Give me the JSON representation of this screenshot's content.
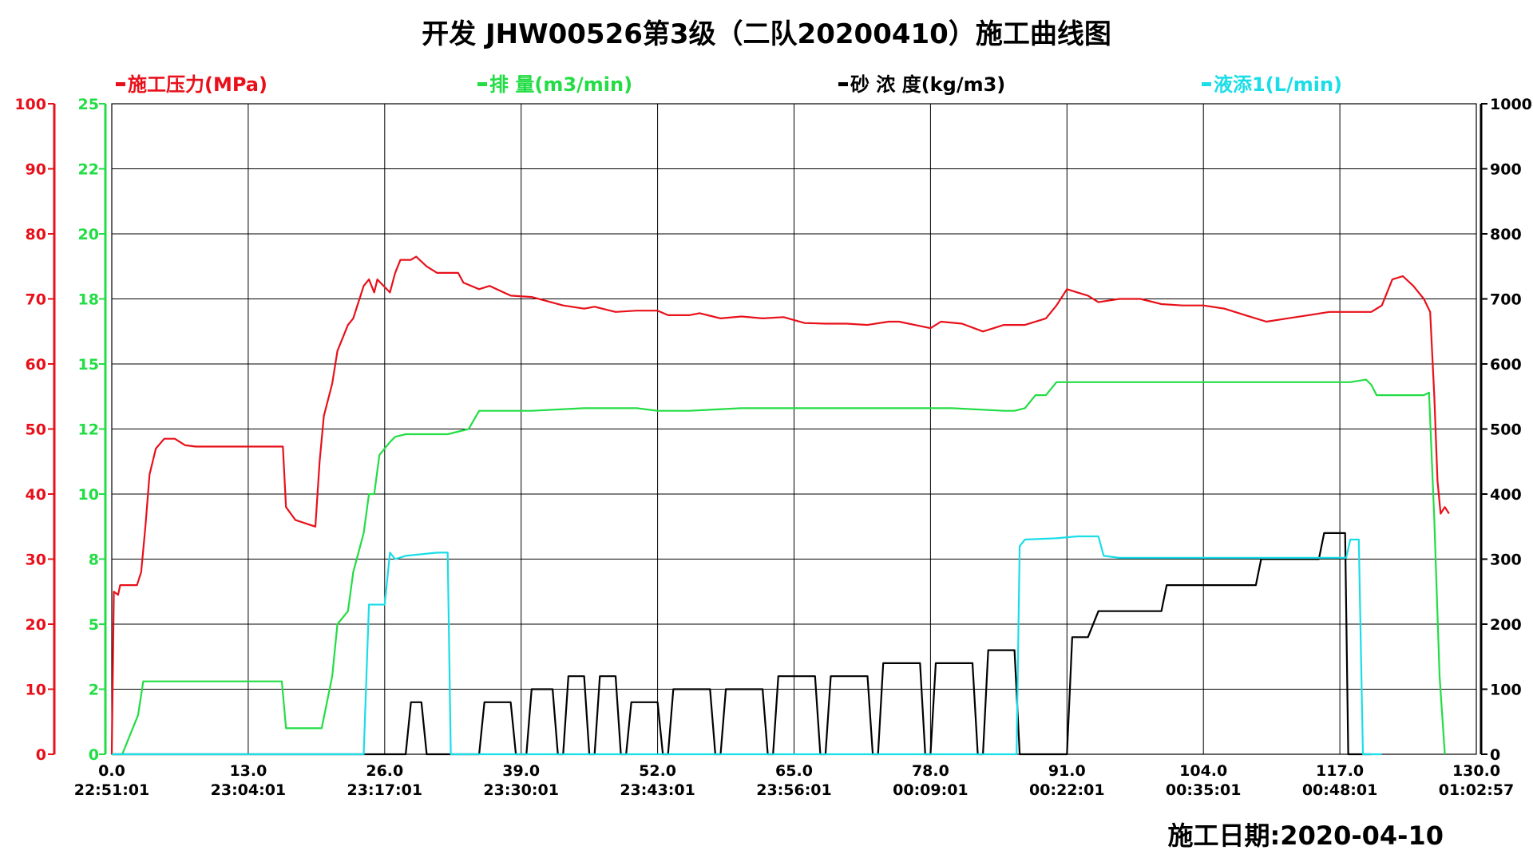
{
  "title": "开发 JHW00526第3级（二队20200410）施工曲线图",
  "construction_date": "施工日期:2020-04-10",
  "chart_data": {
    "type": "line",
    "grid": true,
    "legend_position": "top",
    "xlim": [
      0,
      130
    ],
    "x_ticks": [
      0,
      13,
      26,
      39,
      52,
      65,
      78,
      91,
      104,
      117,
      130
    ],
    "x_tick_labels": [
      "0.0",
      "13.0",
      "26.0",
      "39.0",
      "52.0",
      "65.0",
      "78.0",
      "91.0",
      "104.0",
      "117.0",
      "130.0"
    ],
    "x_time_labels": [
      "22:51:01",
      "23:04:01",
      "23:17:01",
      "23:30:01",
      "23:43:01",
      "23:56:01",
      "00:09:01",
      "00:22:01",
      "00:35:01",
      "00:48:01",
      "01:02:57"
    ],
    "axes": {
      "pressure": {
        "ylim": [
          0,
          100
        ],
        "ticks": [
          "0",
          "10",
          "20",
          "30",
          "40",
          "50",
          "60",
          "70",
          "80",
          "90",
          "100"
        ],
        "color": "#e8101a"
      },
      "rate": {
        "ylim": [
          0,
          25
        ],
        "ticks": [
          "0",
          "2",
          "5",
          "8",
          "10",
          "12",
          "15",
          "18",
          "20",
          "22",
          "25"
        ],
        "color": "#22dd44"
      },
      "right": {
        "ylim": [
          0,
          1000
        ],
        "ticks": [
          "0",
          "100",
          "200",
          "300",
          "400",
          "500",
          "600",
          "700",
          "800",
          "900",
          "1000"
        ],
        "color": "#000000"
      }
    },
    "series": [
      {
        "name": "施工压力(MPa)",
        "axis": "pressure",
        "color": "#e8101a",
        "points": [
          [
            0,
            0
          ],
          [
            0.2,
            25
          ],
          [
            0.6,
            24.5
          ],
          [
            0.8,
            26
          ],
          [
            2,
            26
          ],
          [
            2.4,
            26
          ],
          [
            2.8,
            28
          ],
          [
            3.2,
            35
          ],
          [
            3.6,
            43
          ],
          [
            4.2,
            47
          ],
          [
            5,
            48.5
          ],
          [
            6,
            48.5
          ],
          [
            7,
            47.5
          ],
          [
            8,
            47.3
          ],
          [
            10,
            47.3
          ],
          [
            13,
            47.3
          ],
          [
            15.5,
            47.3
          ],
          [
            16.3,
            47.3
          ],
          [
            16.6,
            38
          ],
          [
            17.5,
            36
          ],
          [
            19.4,
            35
          ],
          [
            19.8,
            45
          ],
          [
            20.2,
            52
          ],
          [
            21,
            57
          ],
          [
            21.5,
            62
          ],
          [
            22.5,
            66
          ],
          [
            23,
            67
          ],
          [
            24,
            72
          ],
          [
            24.5,
            73
          ],
          [
            25,
            71
          ],
          [
            25.3,
            73
          ],
          [
            26.5,
            71
          ],
          [
            27,
            74
          ],
          [
            27.5,
            76
          ],
          [
            28.5,
            76
          ],
          [
            29,
            76.5
          ],
          [
            30,
            75
          ],
          [
            31,
            74
          ],
          [
            32,
            74
          ],
          [
            33,
            74
          ],
          [
            33.5,
            72.5
          ],
          [
            35,
            71.5
          ],
          [
            36,
            72
          ],
          [
            38,
            70.5
          ],
          [
            40,
            70.3
          ],
          [
            43,
            69
          ],
          [
            45,
            68.5
          ],
          [
            46,
            68.8
          ],
          [
            48,
            68
          ],
          [
            50,
            68.2
          ],
          [
            52,
            68.2
          ],
          [
            53,
            67.5
          ],
          [
            55,
            67.5
          ],
          [
            56,
            67.8
          ],
          [
            58,
            67
          ],
          [
            60,
            67.3
          ],
          [
            62,
            67
          ],
          [
            64,
            67.2
          ],
          [
            66,
            66.3
          ],
          [
            68,
            66.2
          ],
          [
            70,
            66.2
          ],
          [
            72,
            66
          ],
          [
            74,
            66.5
          ],
          [
            75,
            66.5
          ],
          [
            78,
            65.5
          ],
          [
            79,
            66.5
          ],
          [
            81,
            66.2
          ],
          [
            83,
            65
          ],
          [
            85,
            66
          ],
          [
            87,
            66
          ],
          [
            89,
            67
          ],
          [
            90,
            69
          ],
          [
            91,
            71.5
          ],
          [
            92,
            71
          ],
          [
            93,
            70.5
          ],
          [
            94,
            69.5
          ],
          [
            96,
            70
          ],
          [
            98,
            70
          ],
          [
            100,
            69.2
          ],
          [
            102,
            69
          ],
          [
            104,
            69
          ],
          [
            106,
            68.5
          ],
          [
            108,
            67.5
          ],
          [
            110,
            66.5
          ],
          [
            112,
            67
          ],
          [
            114,
            67.5
          ],
          [
            116,
            68
          ],
          [
            118,
            68
          ],
          [
            120,
            68
          ],
          [
            121,
            69
          ],
          [
            122,
            73
          ],
          [
            123,
            73.5
          ],
          [
            124,
            72
          ],
          [
            125,
            70
          ],
          [
            125.6,
            68
          ],
          [
            126,
            55
          ],
          [
            126.3,
            42
          ],
          [
            126.6,
            37
          ],
          [
            127,
            38
          ],
          [
            127.4,
            37
          ]
        ]
      },
      {
        "name": "排  量(m3/min)",
        "axis": "rate",
        "color": "#22dd44",
        "points": [
          [
            0,
            0
          ],
          [
            1,
            0
          ],
          [
            1.5,
            0.5
          ],
          [
            2.5,
            1.5
          ],
          [
            3,
            2.8
          ],
          [
            5,
            2.8
          ],
          [
            10,
            2.8
          ],
          [
            16,
            2.8
          ],
          [
            16.2,
            2.8
          ],
          [
            16.6,
            1
          ],
          [
            19,
            1
          ],
          [
            20,
            1
          ],
          [
            20.5,
            2
          ],
          [
            21,
            3
          ],
          [
            21.5,
            5
          ],
          [
            22.5,
            5.5
          ],
          [
            23,
            7
          ],
          [
            24,
            8.5
          ],
          [
            24.5,
            10
          ],
          [
            25,
            10
          ],
          [
            25.5,
            11.5
          ],
          [
            26.5,
            12
          ],
          [
            27,
            12.2
          ],
          [
            28,
            12.3
          ],
          [
            32,
            12.3
          ],
          [
            34,
            12.5
          ],
          [
            35,
            13.2
          ],
          [
            36,
            13.2
          ],
          [
            40,
            13.2
          ],
          [
            45,
            13.3
          ],
          [
            50,
            13.3
          ],
          [
            52,
            13.2
          ],
          [
            55,
            13.2
          ],
          [
            60,
            13.3
          ],
          [
            65,
            13.3
          ],
          [
            70,
            13.3
          ],
          [
            75,
            13.3
          ],
          [
            80,
            13.3
          ],
          [
            85,
            13.2
          ],
          [
            86,
            13.2
          ],
          [
            87,
            13.3
          ],
          [
            88,
            13.8
          ],
          [
            89,
            13.8
          ],
          [
            90,
            14.3
          ],
          [
            92,
            14.3
          ],
          [
            95,
            14.3
          ],
          [
            100,
            14.3
          ],
          [
            105,
            14.3
          ],
          [
            110,
            14.3
          ],
          [
            115,
            14.3
          ],
          [
            117,
            14.3
          ],
          [
            118,
            14.3
          ],
          [
            119.5,
            14.4
          ],
          [
            120,
            14.2
          ],
          [
            120.5,
            13.8
          ],
          [
            122,
            13.8
          ],
          [
            123,
            13.8
          ],
          [
            125,
            13.8
          ],
          [
            125.5,
            13.9
          ],
          [
            126,
            9
          ],
          [
            126.5,
            3
          ],
          [
            127,
            0
          ]
        ]
      },
      {
        "name": "砂 浓 度(kg/m3)",
        "axis": "right",
        "color": "#000000",
        "points": [
          [
            0,
            0
          ],
          [
            28,
            0
          ],
          [
            28.5,
            80
          ],
          [
            29.5,
            80
          ],
          [
            30,
            0
          ],
          [
            35,
            0
          ],
          [
            35.5,
            80
          ],
          [
            38,
            80
          ],
          [
            38.5,
            0
          ],
          [
            39.5,
            0
          ],
          [
            40,
            100
          ],
          [
            42,
            100
          ],
          [
            42.5,
            0
          ],
          [
            43,
            0
          ],
          [
            43.5,
            120
          ],
          [
            45,
            120
          ],
          [
            45.5,
            0
          ],
          [
            46,
            0
          ],
          [
            46.5,
            120
          ],
          [
            48,
            120
          ],
          [
            48.5,
            0
          ],
          [
            49,
            0
          ],
          [
            49.5,
            80
          ],
          [
            52,
            80
          ],
          [
            52.5,
            0
          ],
          [
            53,
            0
          ],
          [
            53.5,
            100
          ],
          [
            57,
            100
          ],
          [
            57.5,
            0
          ],
          [
            58,
            0
          ],
          [
            58.5,
            100
          ],
          [
            62,
            100
          ],
          [
            62.5,
            0
          ],
          [
            63,
            0
          ],
          [
            63.5,
            120
          ],
          [
            67,
            120
          ],
          [
            67.5,
            0
          ],
          [
            68,
            0
          ],
          [
            68.5,
            120
          ],
          [
            72,
            120
          ],
          [
            72.5,
            0
          ],
          [
            73,
            0
          ],
          [
            73.5,
            140
          ],
          [
            77,
            140
          ],
          [
            77.5,
            0
          ],
          [
            78,
            0
          ],
          [
            78.5,
            140
          ],
          [
            82,
            140
          ],
          [
            82.5,
            0
          ],
          [
            83,
            0
          ],
          [
            83.5,
            160
          ],
          [
            86,
            160
          ],
          [
            86.5,
            0
          ],
          [
            91,
            0
          ],
          [
            91.5,
            180
          ],
          [
            93,
            180
          ],
          [
            94,
            220
          ],
          [
            100,
            220
          ],
          [
            100.5,
            260
          ],
          [
            109,
            260
          ],
          [
            109.5,
            300
          ],
          [
            115,
            300
          ],
          [
            115.5,
            340
          ],
          [
            117.5,
            340
          ],
          [
            117.8,
            0
          ],
          [
            120,
            0
          ]
        ]
      },
      {
        "name": "液添1(L/min)",
        "axis": "right",
        "color": "#1adde8",
        "points": [
          [
            0,
            0
          ],
          [
            24,
            0
          ],
          [
            24.5,
            230
          ],
          [
            26,
            230
          ],
          [
            26.5,
            310
          ],
          [
            27,
            300
          ],
          [
            28,
            305
          ],
          [
            31,
            310
          ],
          [
            32,
            310
          ],
          [
            32.3,
            0
          ],
          [
            35,
            0
          ],
          [
            86,
            0
          ],
          [
            86.2,
            0
          ],
          [
            86.5,
            320
          ],
          [
            87,
            330
          ],
          [
            90,
            332
          ],
          [
            92,
            335
          ],
          [
            94,
            335
          ],
          [
            94.5,
            305
          ],
          [
            96,
            302
          ],
          [
            100,
            302
          ],
          [
            105,
            302
          ],
          [
            110,
            302
          ],
          [
            115,
            302
          ],
          [
            117,
            302
          ],
          [
            117.6,
            302
          ],
          [
            118,
            330
          ],
          [
            118.8,
            330
          ],
          [
            119.2,
            0
          ],
          [
            121,
            0
          ]
        ]
      }
    ]
  }
}
